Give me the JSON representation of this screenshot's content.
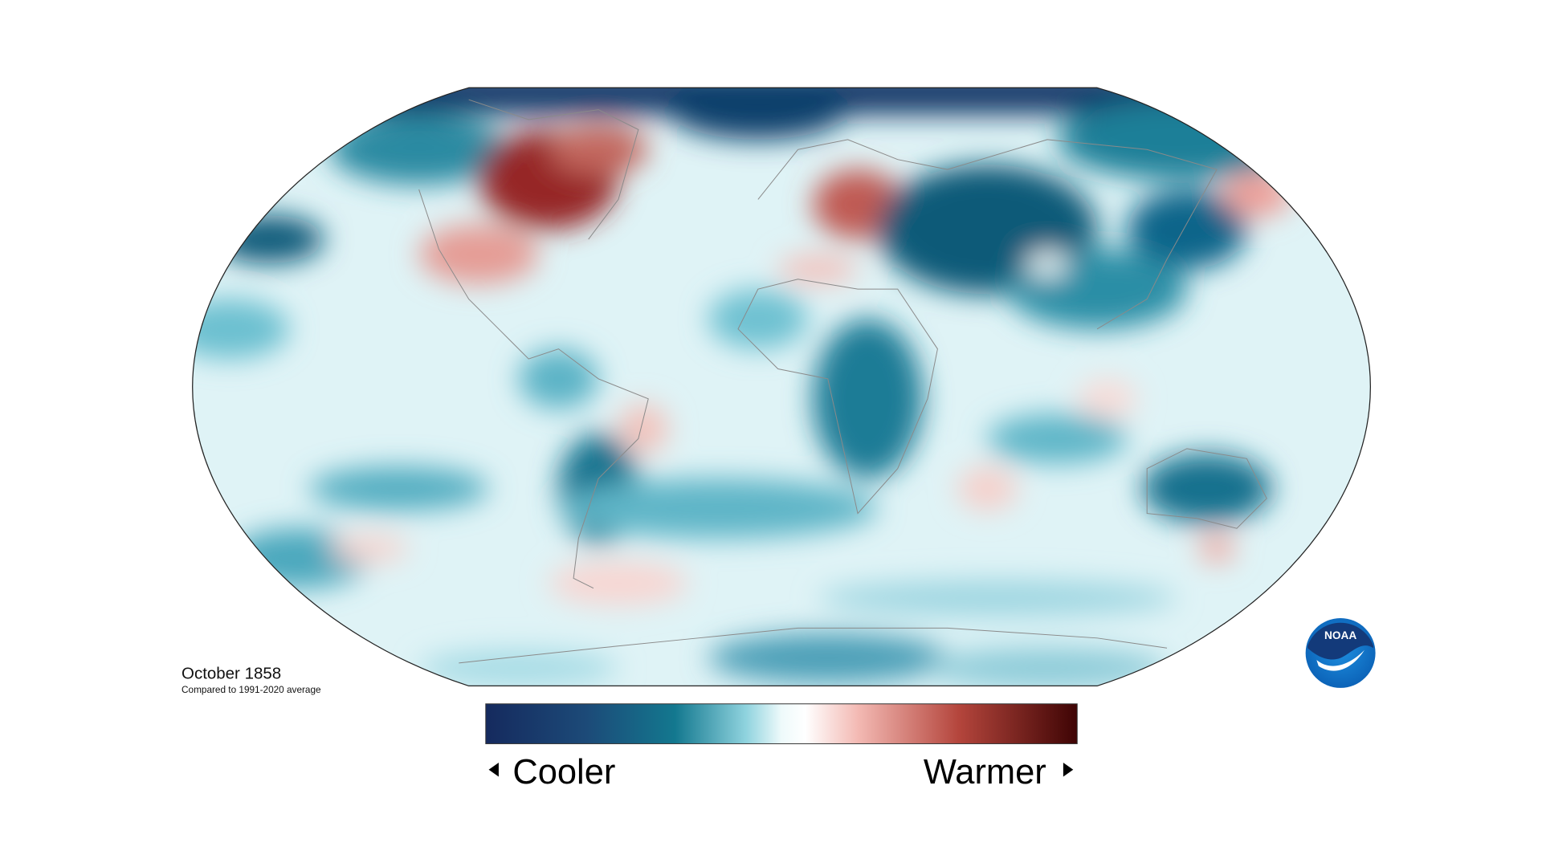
{
  "map": {
    "title": "October 1858",
    "subtitle": "Compared to 1991-2020 average",
    "legend": {
      "low": "Cooler",
      "high": "Warmer"
    },
    "logo": "NOAA"
  }
}
